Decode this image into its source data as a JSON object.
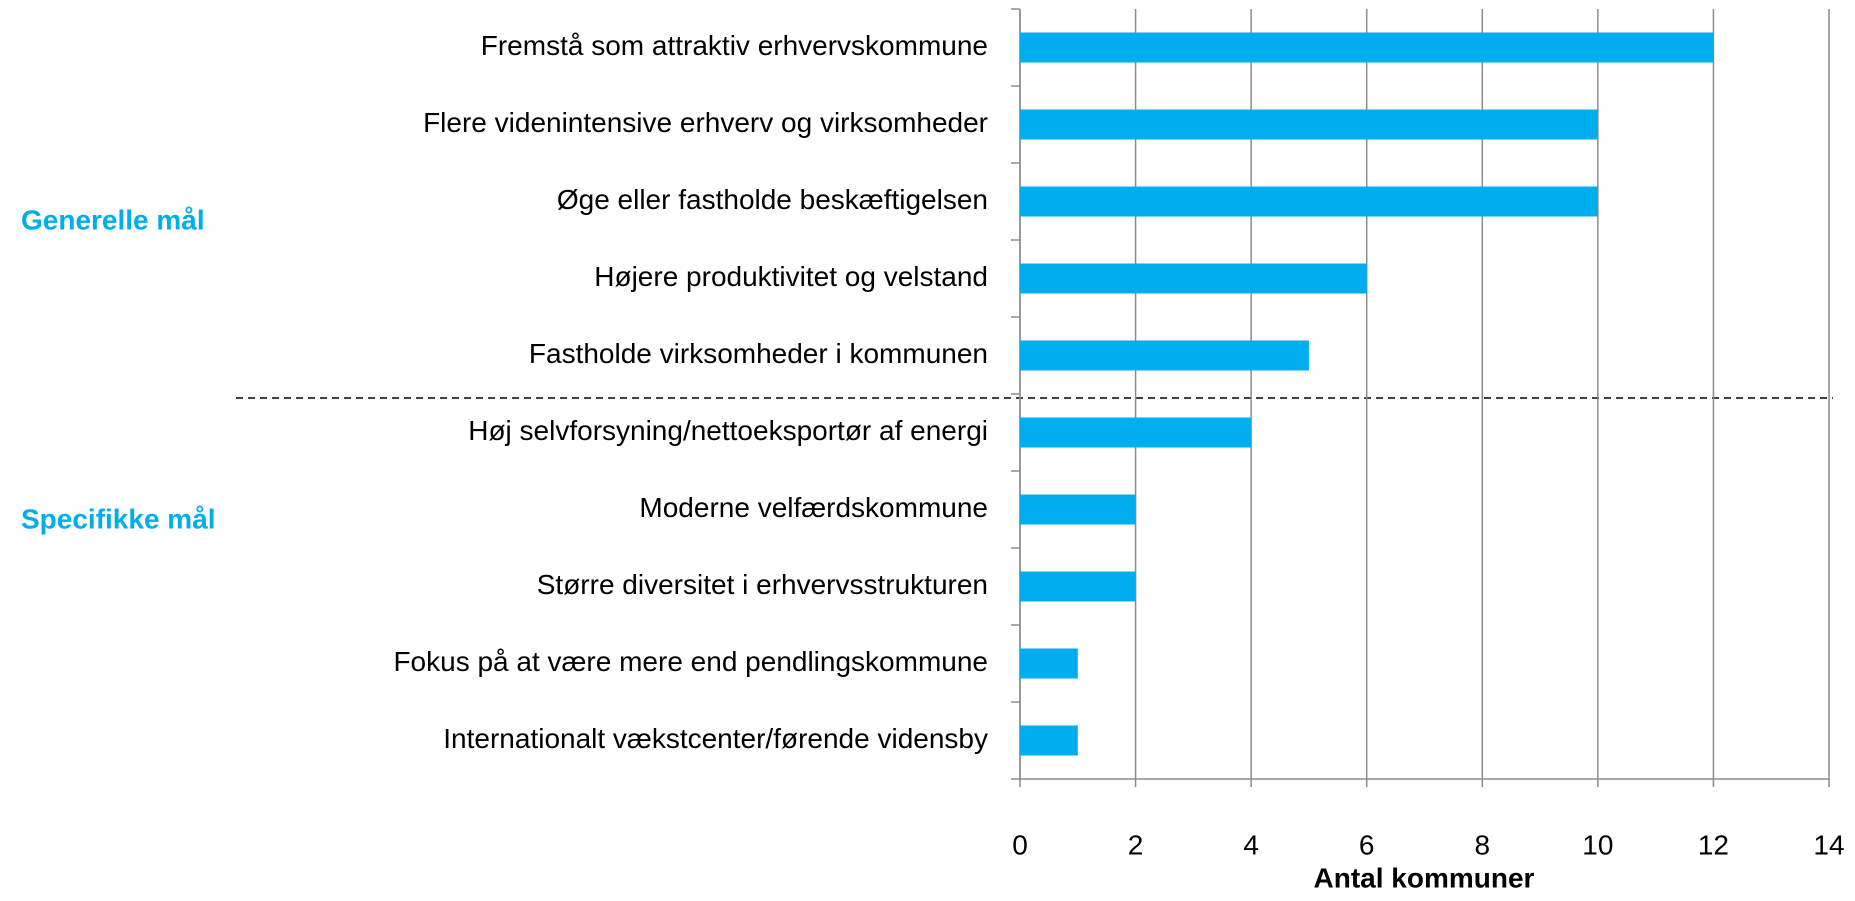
{
  "chart_data": {
    "type": "bar",
    "orientation": "horizontal",
    "x_label": "Antal kommuner",
    "annotations": [
      "Generelle mål",
      "Specifikke mål"
    ],
    "categories": [
      "Fremstå som attraktiv erhvervskommune",
      "Flere videnintensive erhverv og virksomheder",
      "Øge eller fastholde beskæftigelsen",
      "Højere produktivitet og velstand",
      "Fastholde virksomheder i kommunen",
      "Høj selvforsyning/nettoeksportør af energi",
      "Moderne velfærdskommune",
      "Større diversitet i erhvervsstrukturen",
      "Fokus på at være mere end pendlingskommune",
      "Internationalt vækstcenter/førende vidensby"
    ],
    "values": [
      12,
      10,
      10,
      6,
      5,
      4,
      2,
      2,
      1,
      1
    ],
    "color": "#00aeef",
    "xlim": [
      0,
      14
    ],
    "xticks": [
      0,
      2,
      4,
      6,
      8,
      10,
      12,
      14
    ],
    "grid": true
  }
}
